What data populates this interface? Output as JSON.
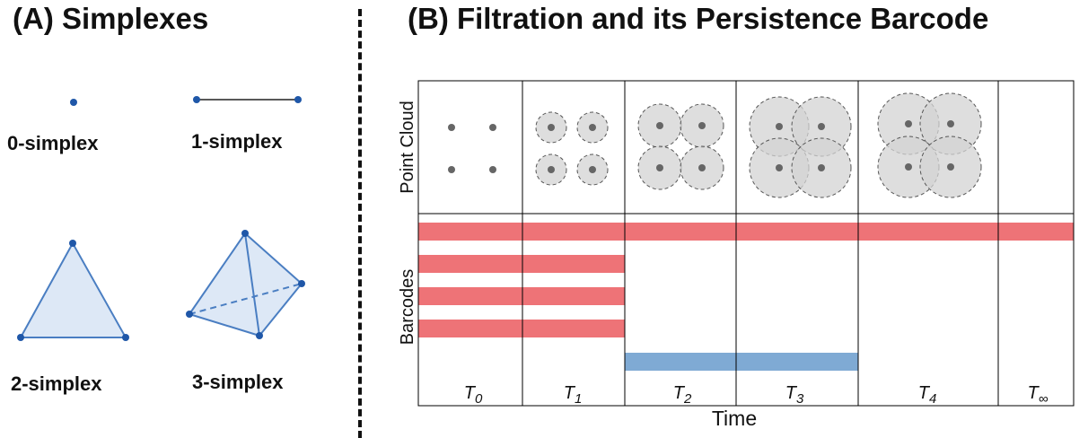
{
  "panel_a": {
    "title": "(A) Simplexes",
    "labels": {
      "s0": "0-simplex",
      "s1": "1-simplex",
      "s2": "2-simplex",
      "s3": "3-simplex"
    }
  },
  "panel_b": {
    "title": "(B) Filtration and its Persistence Barcode",
    "row_labels": {
      "point_cloud": "Point Cloud",
      "barcodes": "Barcodes"
    },
    "xlabel": "Time",
    "time_labels": [
      {
        "base": "T",
        "sub": "0"
      },
      {
        "base": "T",
        "sub": "1"
      },
      {
        "base": "T",
        "sub": "2"
      },
      {
        "base": "T",
        "sub": "3"
      },
      {
        "base": "T",
        "sub": "4"
      },
      {
        "base": "T",
        "sub": "∞"
      }
    ],
    "filtration_radius_levels": [
      0,
      1,
      2,
      3,
      4,
      null
    ],
    "barcodes": [
      {
        "dimension": 0,
        "birth_step": 0,
        "death_step": null
      },
      {
        "dimension": 0,
        "birth_step": 0,
        "death_step": 2
      },
      {
        "dimension": 0,
        "birth_step": 0,
        "death_step": 2
      },
      {
        "dimension": 0,
        "birth_step": 0,
        "death_step": 2
      },
      {
        "dimension": 1,
        "birth_step": 2,
        "death_step": 4
      }
    ],
    "colors": {
      "h0": "#ee7377",
      "h1": "#7faad4",
      "disk_fill": "#d3d3d3",
      "point": "#666666"
    }
  },
  "colors": {
    "simplex_edge": "#4a7ec2",
    "simplex_fill": "#dde8f6",
    "simplex_vertex": "#1f57a8"
  }
}
